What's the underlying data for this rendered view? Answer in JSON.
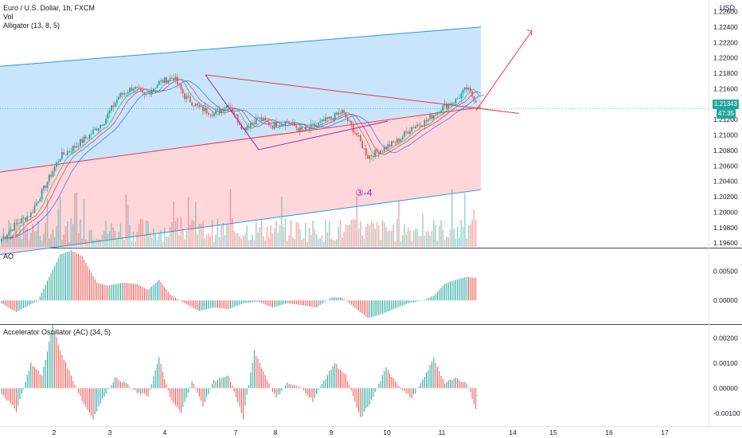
{
  "header": {
    "symbol": "Euro / U.S. Dollar, 1h, FXCM",
    "vol": "Vol",
    "alligator": "Alligator (13, 8, 5)",
    "ao": "AO",
    "ac": "Accelerator Oscillator (AC) (34, 5)",
    "currency": "USD",
    "wave": "③-4",
    "last_price": "1.21343",
    "countdown": "47:35"
  },
  "colors": {
    "up": "#26a69a",
    "down": "#ef5350",
    "channel_top": "#bbdefb",
    "channel_bottom": "#ffcdd2",
    "trend": "#f23645",
    "wave": "#9c27b0"
  },
  "chart_data": [
    {
      "type": "candlestick",
      "title": "Euro / U.S. Dollar, 1h, FXCM",
      "x_ticks": [
        "2",
        "3",
        "4",
        "7",
        "8",
        "9",
        "10",
        "11",
        "14",
        "15",
        "16",
        "17"
      ],
      "y_ticks": [
        "1.22600",
        "1.22400",
        "1.22200",
        "1.22000",
        "1.21800",
        "1.21600",
        "1.21400",
        "1.21200",
        "1.21000",
        "1.20800",
        "1.20600",
        "1.20400",
        "1.20200",
        "1.20000",
        "1.19800",
        "1.19600"
      ],
      "ylim": [
        1.1955,
        1.2275
      ],
      "series": [
        {
          "name": "Alligator (13, 8, 5)"
        }
      ],
      "anchors": [
        [
          0,
          1.1965
        ],
        [
          8,
          1.1985
        ],
        [
          16,
          1.1998
        ],
        [
          24,
          1.2035
        ],
        [
          32,
          1.2072
        ],
        [
          40,
          1.2085
        ],
        [
          48,
          1.21
        ],
        [
          56,
          1.2118
        ],
        [
          64,
          1.215
        ],
        [
          72,
          1.2162
        ],
        [
          78,
          1.215
        ],
        [
          86,
          1.2168
        ],
        [
          94,
          1.2175
        ],
        [
          100,
          1.215
        ],
        [
          108,
          1.2135
        ],
        [
          116,
          1.2128
        ],
        [
          124,
          1.214
        ],
        [
          132,
          1.2108
        ],
        [
          140,
          1.2122
        ],
        [
          148,
          1.2112
        ],
        [
          156,
          1.2118
        ],
        [
          164,
          1.2105
        ],
        [
          172,
          1.2113
        ],
        [
          180,
          1.2122
        ],
        [
          186,
          1.213
        ],
        [
          194,
          1.21
        ],
        [
          200,
          1.2072
        ],
        [
          208,
          1.2082
        ],
        [
          216,
          1.2092
        ],
        [
          224,
          1.211
        ],
        [
          232,
          1.2118
        ],
        [
          240,
          1.2135
        ],
        [
          248,
          1.2145
        ],
        [
          254,
          1.216
        ],
        [
          259,
          1.2145
        ]
      ],
      "last_price": 1.21343
    },
    {
      "type": "bar",
      "title": "AO",
      "y_ticks": [
        "0.00500",
        "0.00000"
      ],
      "ylim": [
        -0.0039,
        0.0087
      ],
      "anchors": [
        [
          0,
          -0.0005
        ],
        [
          8,
          -0.002
        ],
        [
          14,
          -0.001
        ],
        [
          20,
          0.0
        ],
        [
          26,
          0.004
        ],
        [
          32,
          0.0078
        ],
        [
          38,
          0.0085
        ],
        [
          44,
          0.0075
        ],
        [
          52,
          0.003
        ],
        [
          58,
          0.0025
        ],
        [
          66,
          0.003
        ],
        [
          74,
          0.0028
        ],
        [
          80,
          0.0018
        ],
        [
          86,
          0.0035
        ],
        [
          92,
          0.001
        ],
        [
          100,
          -0.0005
        ],
        [
          108,
          -0.0018
        ],
        [
          116,
          -0.0012
        ],
        [
          124,
          -0.0015
        ],
        [
          132,
          -0.0005
        ],
        [
          140,
          -0.0002
        ],
        [
          148,
          -0.0012
        ],
        [
          156,
          -0.0005
        ],
        [
          164,
          -0.0008
        ],
        [
          172,
          -0.0012
        ],
        [
          180,
          0.0005
        ],
        [
          186,
          0.0005
        ],
        [
          194,
          -0.0015
        ],
        [
          200,
          -0.003
        ],
        [
          206,
          -0.0025
        ],
        [
          214,
          -0.0015
        ],
        [
          222,
          -0.0005
        ],
        [
          230,
          0.0
        ],
        [
          236,
          0.0008
        ],
        [
          242,
          0.0028
        ],
        [
          248,
          0.0035
        ],
        [
          254,
          0.004
        ],
        [
          259,
          0.0038
        ]
      ]
    },
    {
      "type": "bar",
      "title": "Accelerator Oscillator (AC) (34, 5)",
      "y_ticks": [
        "0.00200",
        "0.00100",
        "0.00000",
        "-0.00100"
      ],
      "ylim": [
        -0.00148,
        0.00252
      ],
      "anchors": [
        [
          0,
          -0.0002
        ],
        [
          8,
          -0.0009
        ],
        [
          12,
          0.0
        ],
        [
          16,
          0.001
        ],
        [
          22,
          0.0005
        ],
        [
          28,
          0.0025
        ],
        [
          32,
          0.0015
        ],
        [
          38,
          0.0005
        ],
        [
          44,
          -0.0005
        ],
        [
          50,
          -0.0012
        ],
        [
          56,
          -0.0003
        ],
        [
          62,
          0.0004
        ],
        [
          68,
          0.0002
        ],
        [
          74,
          -0.0002
        ],
        [
          80,
          -0.0003
        ],
        [
          86,
          0.0012
        ],
        [
          92,
          -0.0004
        ],
        [
          98,
          -0.001
        ],
        [
          104,
          0.0003
        ],
        [
          110,
          -0.0007
        ],
        [
          116,
          0.0003
        ],
        [
          124,
          0.0005
        ],
        [
          132,
          -0.0012
        ],
        [
          138,
          0.0015
        ],
        [
          144,
          0.0005
        ],
        [
          150,
          -0.0004
        ],
        [
          156,
          0.0002
        ],
        [
          164,
          0.0
        ],
        [
          170,
          -0.0005
        ],
        [
          176,
          0.0003
        ],
        [
          182,
          0.001
        ],
        [
          188,
          0.0005
        ],
        [
          196,
          -0.0012
        ],
        [
          202,
          -0.0005
        ],
        [
          210,
          0.0008
        ],
        [
          218,
          0.0
        ],
        [
          224,
          -0.0004
        ],
        [
          230,
          0.0003
        ],
        [
          236,
          0.0012
        ],
        [
          242,
          0.0002
        ],
        [
          248,
          0.0004
        ],
        [
          254,
          0.0002
        ],
        [
          259,
          -0.0008
        ]
      ]
    }
  ]
}
